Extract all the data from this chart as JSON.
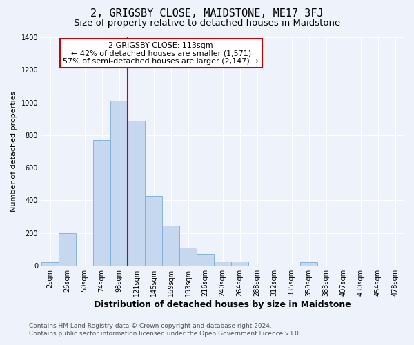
{
  "title": "2, GRIGSBY CLOSE, MAIDSTONE, ME17 3FJ",
  "subtitle": "Size of property relative to detached houses in Maidstone",
  "xlabel": "Distribution of detached houses by size in Maidstone",
  "ylabel": "Number of detached properties",
  "bar_labels": [
    "2sqm",
    "26sqm",
    "50sqm",
    "74sqm",
    "98sqm",
    "121sqm",
    "145sqm",
    "169sqm",
    "193sqm",
    "216sqm",
    "240sqm",
    "264sqm",
    "288sqm",
    "312sqm",
    "335sqm",
    "359sqm",
    "383sqm",
    "407sqm",
    "430sqm",
    "454sqm",
    "478sqm"
  ],
  "bar_values": [
    20,
    200,
    0,
    770,
    1010,
    890,
    425,
    245,
    110,
    70,
    25,
    25,
    0,
    0,
    0,
    20,
    0,
    0,
    0,
    0,
    0
  ],
  "bar_color": "#c5d8f0",
  "bar_edge_color": "#7aadd4",
  "ylim": [
    0,
    1400
  ],
  "yticks": [
    0,
    200,
    400,
    600,
    800,
    1000,
    1200,
    1400
  ],
  "marker_line_color": "#cc0000",
  "annotation_title": "2 GRIGSBY CLOSE: 113sqm",
  "annotation_line1": "← 42% of detached houses are smaller (1,571)",
  "annotation_line2": "57% of semi-detached houses are larger (2,147) →",
  "annotation_box_color": "#ffffff",
  "annotation_border_color": "#cc0000",
  "footer_line1": "Contains HM Land Registry data © Crown copyright and database right 2024.",
  "footer_line2": "Contains public sector information licensed under the Open Government Licence v3.0.",
  "background_color": "#eef2fa",
  "plot_bg_color": "#eef2fa",
  "title_fontsize": 11,
  "subtitle_fontsize": 9.5,
  "xlabel_fontsize": 9,
  "ylabel_fontsize": 8,
  "tick_fontsize": 7,
  "footer_fontsize": 6.5,
  "annotation_fontsize": 8
}
